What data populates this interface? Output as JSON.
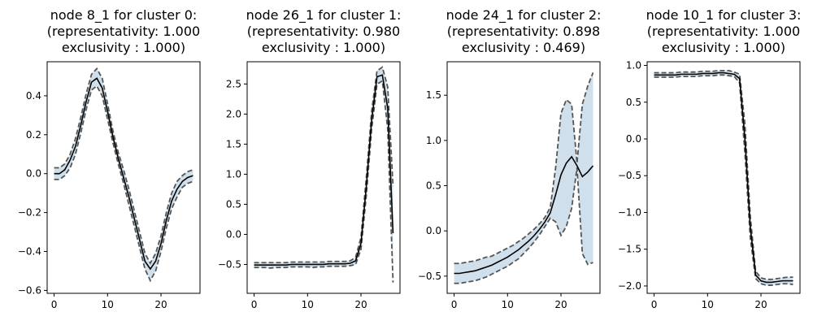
{
  "figure": {
    "background_color": "#ffffff",
    "band_color": "#cfe0ec",
    "mean_color": "#000000",
    "bound_color": "#555555"
  },
  "chart_data": [
    {
      "type": "line",
      "title": [
        "node 8_1 for cluster 0:",
        "(representativity: 1.000",
        "exclusivity : 1.000)"
      ],
      "xlabel": "",
      "ylabel": "",
      "xlim": [
        -1.3,
        27.3
      ],
      "ylim": [
        -0.615,
        0.575
      ],
      "xticks": [
        0,
        10,
        20
      ],
      "yticks": [
        -0.6,
        -0.4,
        -0.2,
        0.0,
        0.2,
        0.4
      ],
      "ytick_labels": [
        "−0.6",
        "−0.4",
        "−0.2",
        "0.0",
        "0.2",
        "0.4"
      ],
      "x": [
        0,
        1,
        2,
        3,
        4,
        5,
        6,
        7,
        8,
        9,
        10,
        11,
        12,
        13,
        14,
        15,
        16,
        17,
        18,
        19,
        20,
        21,
        22,
        23,
        24,
        25,
        26
      ],
      "series": [
        {
          "name": "mean",
          "values": [
            0.0,
            0.0,
            0.02,
            0.07,
            0.14,
            0.25,
            0.37,
            0.47,
            0.49,
            0.44,
            0.32,
            0.19,
            0.08,
            -0.02,
            -0.12,
            -0.23,
            -0.34,
            -0.45,
            -0.49,
            -0.45,
            -0.36,
            -0.24,
            -0.14,
            -0.08,
            -0.04,
            -0.02,
            -0.01
          ]
        },
        {
          "name": "upper",
          "values": [
            0.03,
            0.03,
            0.05,
            0.1,
            0.18,
            0.29,
            0.41,
            0.51,
            0.54,
            0.49,
            0.36,
            0.22,
            0.11,
            0.02,
            -0.08,
            -0.19,
            -0.3,
            -0.41,
            -0.46,
            -0.41,
            -0.32,
            -0.2,
            -0.1,
            -0.04,
            -0.01,
            0.01,
            0.02
          ]
        },
        {
          "name": "lower",
          "values": [
            -0.03,
            -0.03,
            -0.01,
            0.03,
            0.1,
            0.21,
            0.33,
            0.43,
            0.45,
            0.4,
            0.28,
            0.16,
            0.05,
            -0.05,
            -0.16,
            -0.27,
            -0.38,
            -0.49,
            -0.55,
            -0.5,
            -0.4,
            -0.28,
            -0.18,
            -0.12,
            -0.07,
            -0.05,
            -0.04
          ]
        }
      ]
    },
    {
      "type": "line",
      "title": [
        "node 26_1 for cluster 1:",
        "(representativity: 0.980",
        "exclusivity : 1.000)"
      ],
      "xlabel": "",
      "ylabel": "",
      "xlim": [
        -1.3,
        27.3
      ],
      "ylim": [
        -0.98,
        2.87
      ],
      "xticks": [
        0,
        10,
        20
      ],
      "yticks": [
        -0.5,
        0.0,
        0.5,
        1.0,
        1.5,
        2.0,
        2.5
      ],
      "ytick_labels": [
        "−0.5",
        "0.0",
        "0.5",
        "1.0",
        "1.5",
        "2.0",
        "2.5"
      ],
      "x": [
        0,
        1,
        2,
        3,
        4,
        5,
        6,
        7,
        8,
        9,
        10,
        11,
        12,
        13,
        14,
        15,
        16,
        17,
        18,
        19,
        20,
        21,
        22,
        23,
        24,
        25,
        26
      ],
      "series": [
        {
          "name": "mean",
          "values": [
            -0.51,
            -0.51,
            -0.51,
            -0.51,
            -0.51,
            -0.51,
            -0.51,
            -0.5,
            -0.5,
            -0.5,
            -0.5,
            -0.5,
            -0.5,
            -0.5,
            -0.49,
            -0.49,
            -0.49,
            -0.49,
            -0.48,
            -0.44,
            -0.15,
            0.8,
            1.9,
            2.62,
            2.65,
            2.1,
            0.02
          ]
        },
        {
          "name": "upper",
          "values": [
            -0.47,
            -0.47,
            -0.47,
            -0.47,
            -0.47,
            -0.47,
            -0.47,
            -0.46,
            -0.46,
            -0.46,
            -0.46,
            -0.46,
            -0.46,
            -0.46,
            -0.45,
            -0.45,
            -0.45,
            -0.45,
            -0.44,
            -0.38,
            -0.05,
            0.95,
            2.05,
            2.72,
            2.78,
            2.45,
            0.8
          ]
        },
        {
          "name": "lower",
          "values": [
            -0.55,
            -0.55,
            -0.55,
            -0.56,
            -0.55,
            -0.55,
            -0.55,
            -0.54,
            -0.54,
            -0.54,
            -0.54,
            -0.55,
            -0.54,
            -0.54,
            -0.53,
            -0.53,
            -0.53,
            -0.53,
            -0.52,
            -0.5,
            -0.25,
            0.65,
            1.75,
            2.5,
            2.55,
            1.75,
            -0.8
          ]
        }
      ]
    },
    {
      "type": "line",
      "title": [
        "node 24_1 for cluster 2:",
        "(representativity: 0.898",
        "exclusivity : 0.469)"
      ],
      "xlabel": "",
      "ylabel": "",
      "xlim": [
        -1.3,
        27.3
      ],
      "ylim": [
        -0.69,
        1.87
      ],
      "xticks": [
        0,
        10,
        20
      ],
      "yticks": [
        -0.5,
        0.0,
        0.5,
        1.0,
        1.5
      ],
      "ytick_labels": [
        "−0.5",
        "0.0",
        "0.5",
        "1.0",
        "1.5"
      ],
      "x": [
        0,
        1,
        2,
        3,
        4,
        5,
        6,
        7,
        8,
        9,
        10,
        11,
        12,
        13,
        14,
        15,
        16,
        17,
        18,
        19,
        20,
        21,
        22,
        23,
        24,
        25,
        26
      ],
      "series": [
        {
          "name": "mean",
          "values": [
            -0.47,
            -0.47,
            -0.46,
            -0.45,
            -0.44,
            -0.42,
            -0.4,
            -0.38,
            -0.35,
            -0.32,
            -0.29,
            -0.25,
            -0.21,
            -0.16,
            -0.11,
            -0.05,
            0.02,
            0.1,
            0.2,
            0.4,
            0.62,
            0.75,
            0.82,
            0.72,
            0.6,
            0.65,
            0.72
          ]
        },
        {
          "name": "upper",
          "values": [
            -0.36,
            -0.36,
            -0.35,
            -0.34,
            -0.33,
            -0.31,
            -0.29,
            -0.28,
            -0.25,
            -0.22,
            -0.19,
            -0.16,
            -0.12,
            -0.08,
            -0.03,
            0.02,
            0.08,
            0.15,
            0.26,
            0.7,
            1.3,
            1.45,
            1.4,
            0.75,
            1.4,
            1.6,
            1.75
          ]
        },
        {
          "name": "lower",
          "values": [
            -0.58,
            -0.58,
            -0.57,
            -0.56,
            -0.55,
            -0.53,
            -0.51,
            -0.48,
            -0.45,
            -0.42,
            -0.39,
            -0.35,
            -0.31,
            -0.25,
            -0.19,
            -0.12,
            -0.04,
            0.05,
            0.14,
            0.1,
            -0.05,
            0.05,
            0.25,
            0.7,
            -0.25,
            -0.37,
            -0.35
          ]
        }
      ]
    },
    {
      "type": "line",
      "title": [
        "node 10_1 for cluster 3:",
        "(representativity: 1.000",
        "exclusivity : 1.000)"
      ],
      "xlabel": "",
      "ylabel": "",
      "xlim": [
        -1.3,
        27.3
      ],
      "ylim": [
        -2.1,
        1.05
      ],
      "xticks": [
        0,
        10,
        20
      ],
      "yticks": [
        -2.0,
        -1.5,
        -1.0,
        -0.5,
        0.0,
        0.5,
        1.0
      ],
      "ytick_labels": [
        "−2.0",
        "−1.5",
        "−1.0",
        "−0.5",
        "0.0",
        "0.5",
        "1.0"
      ],
      "x": [
        0,
        1,
        2,
        3,
        4,
        5,
        6,
        7,
        8,
        9,
        10,
        11,
        12,
        13,
        14,
        15,
        16,
        17,
        18,
        19,
        20,
        21,
        22,
        23,
        24,
        25,
        26
      ],
      "series": [
        {
          "name": "mean",
          "values": [
            0.87,
            0.87,
            0.87,
            0.87,
            0.87,
            0.88,
            0.88,
            0.88,
            0.88,
            0.89,
            0.89,
            0.89,
            0.9,
            0.9,
            0.89,
            0.88,
            0.82,
            0.0,
            -1.2,
            -1.85,
            -1.93,
            -1.95,
            -1.95,
            -1.94,
            -1.93,
            -1.93,
            -1.93
          ]
        },
        {
          "name": "upper",
          "values": [
            0.9,
            0.9,
            0.9,
            0.9,
            0.9,
            0.91,
            0.91,
            0.91,
            0.91,
            0.92,
            0.92,
            0.92,
            0.93,
            0.93,
            0.93,
            0.91,
            0.88,
            0.2,
            -1.05,
            -1.8,
            -1.89,
            -1.91,
            -1.91,
            -1.9,
            -1.89,
            -1.88,
            -1.88
          ]
        },
        {
          "name": "lower",
          "values": [
            0.84,
            0.84,
            0.84,
            0.84,
            0.84,
            0.85,
            0.85,
            0.85,
            0.85,
            0.86,
            0.86,
            0.86,
            0.87,
            0.87,
            0.86,
            0.85,
            0.76,
            -0.2,
            -1.35,
            -1.9,
            -1.97,
            -1.99,
            -1.99,
            -1.98,
            -1.97,
            -1.97,
            -1.98
          ]
        }
      ]
    }
  ]
}
